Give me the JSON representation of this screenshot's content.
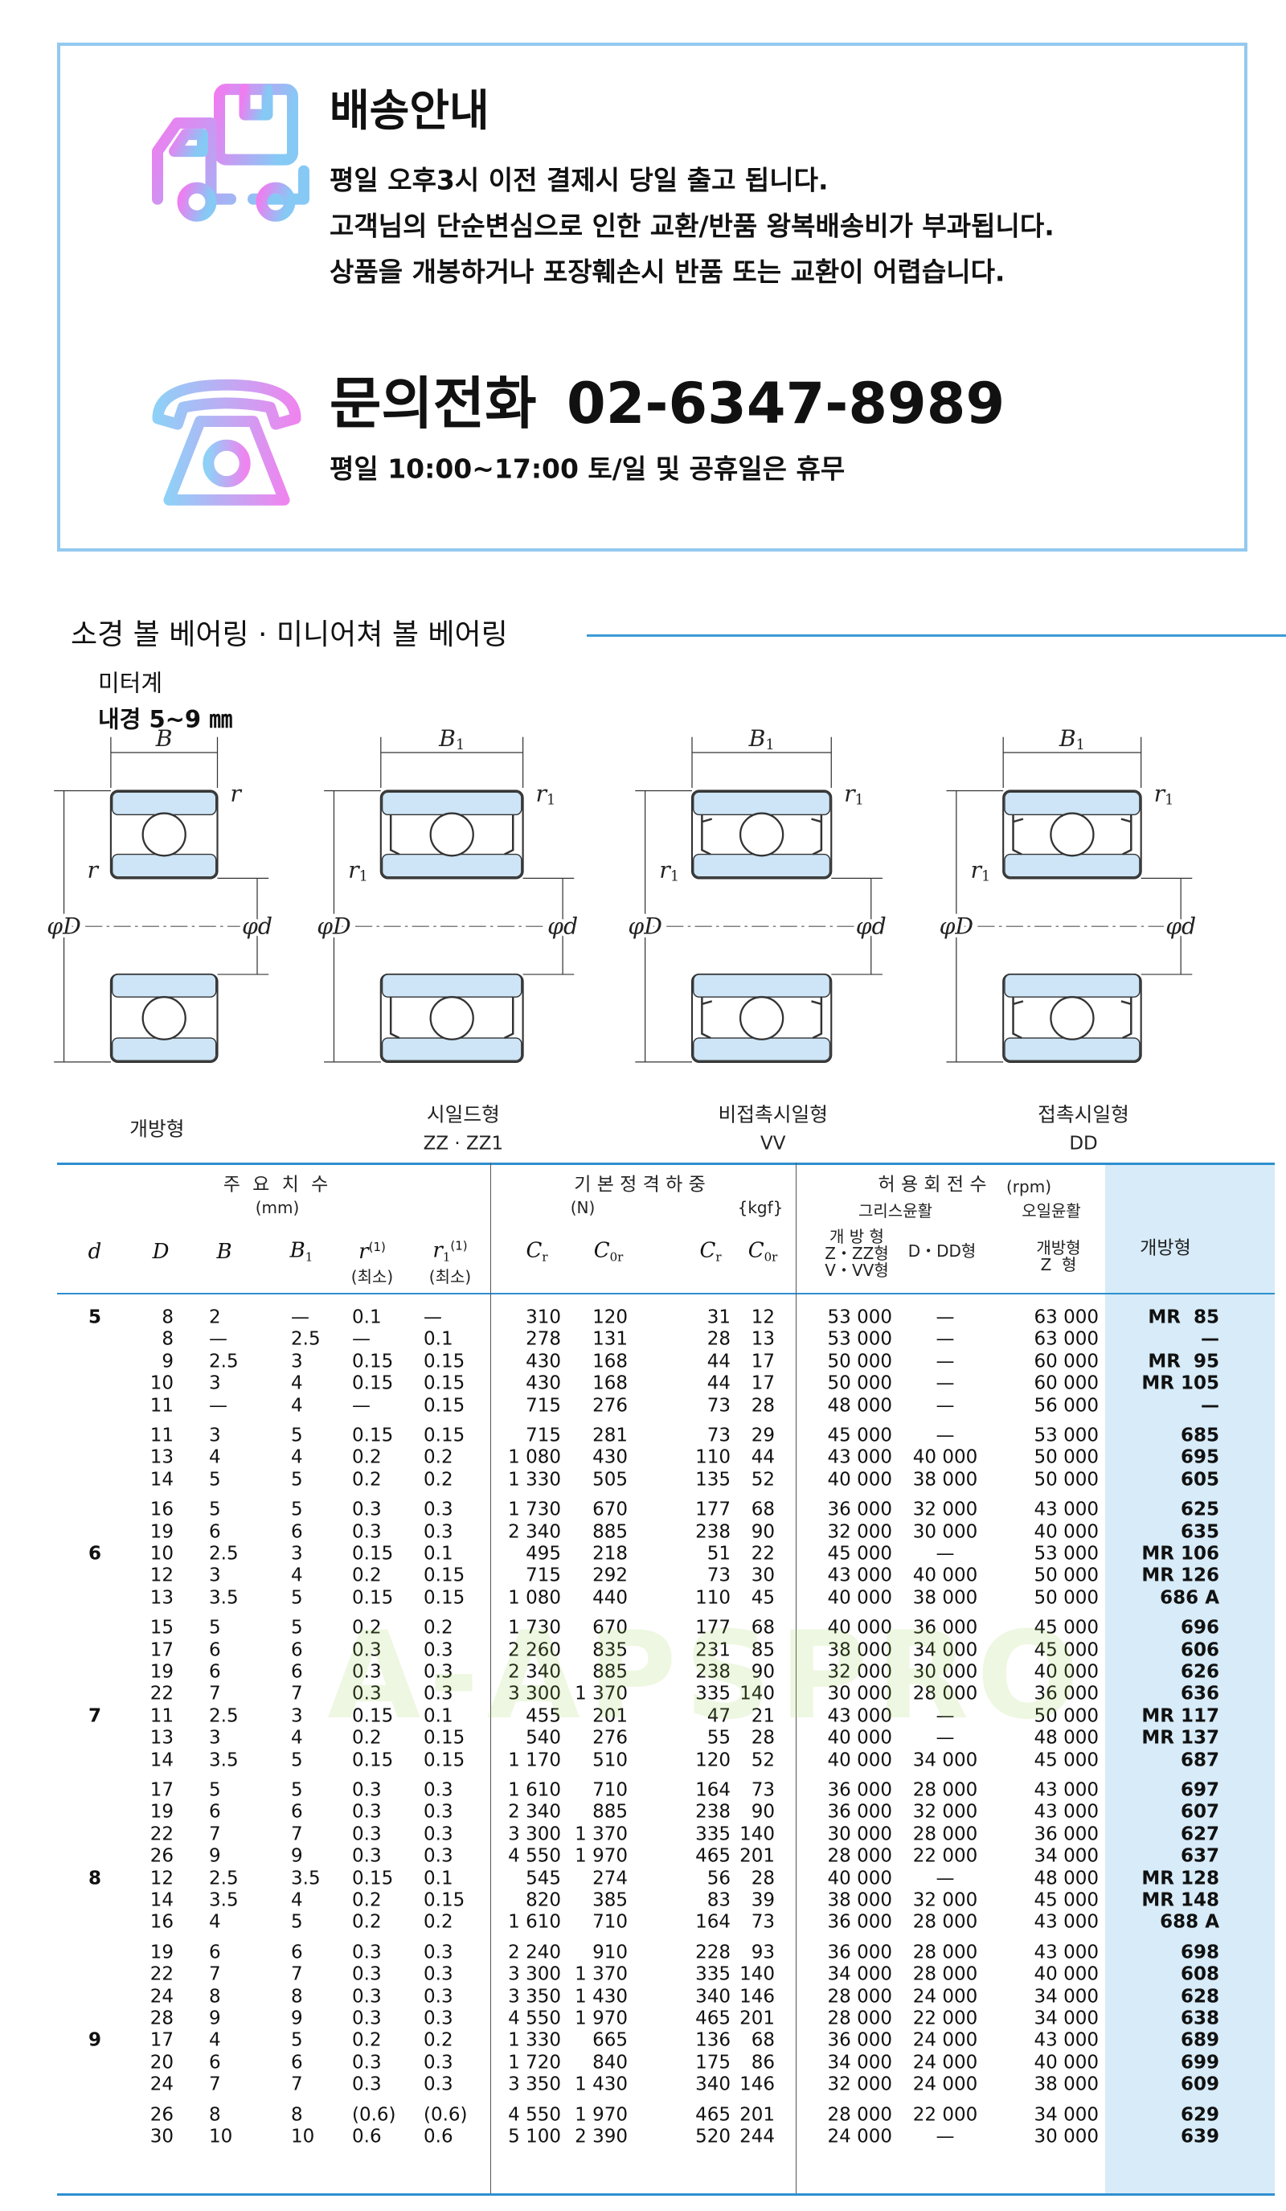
{
  "notice": {
    "title": "배송안내",
    "lines": [
      "평일 오후3시 이전 결제시 당일 출고 됩니다.",
      "고객님의 단순변심으로 인한 교환/반품 왕복배송비가 부과됩니다.",
      "상품을 개봉하거나 포장훼손시 반품 또는 교환이 어렵습니다."
    ],
    "phone_title": "문의전화",
    "phone": "02-6347-8989",
    "hours": "평일 10:00~17:00 토/일 및 공휴일은 휴무"
  },
  "section": {
    "title": "소경 볼 베어링 · 미니어쳐 볼 베어링",
    "system": "미터계",
    "bore_range": "내경 5~9 ㎜"
  },
  "diagrams": {
    "outer_label": "φD",
    "inner_label": "φd",
    "items": [
      {
        "width": "B",
        "corner": "r",
        "side": "r",
        "caption": "개방형"
      },
      {
        "width": "B",
        "width_sub": "1",
        "corner": "r",
        "corner_sub": "1",
        "side": "r",
        "side_sub": "1",
        "caption": "시일드형",
        "code": "ZZ · ZZ1"
      },
      {
        "width": "B",
        "width_sub": "1",
        "corner": "r",
        "corner_sub": "1",
        "side": "r",
        "side_sub": "1",
        "caption": "비접촉시일형",
        "code": "VV"
      },
      {
        "width": "B",
        "width_sub": "1",
        "corner": "r",
        "corner_sub": "1",
        "side": "r",
        "side_sub": "1",
        "caption": "접촉시일형",
        "code": "DD"
      }
    ]
  },
  "table": {
    "header": {
      "dims": "주 요 치 수",
      "dims_unit": "(mm)",
      "load": "기 본 정 격 하 중",
      "load_unit_n": "(N)",
      "load_unit_kgf": "{kgf}",
      "speed": "허 용 회 전 수",
      "speed_unit": "(rpm)",
      "grease": "그리스윤활",
      "oil": "오일윤활",
      "open": "개방형",
      "columns": [
        {
          "main": "d"
        },
        {
          "main": "D"
        },
        {
          "main": "B"
        },
        {
          "main": "B",
          "sub": "1"
        },
        {
          "main": "r",
          "sup": "(1)",
          "note": "(최소)"
        },
        {
          "main": "r",
          "sub": "1",
          "sup": "(1)",
          "note": "(최소)"
        },
        {
          "main": "C",
          "sub": "r"
        },
        {
          "main": "C",
          "sub": "0r"
        },
        {
          "main": "C",
          "sub": "r"
        },
        {
          "main": "C",
          "sub": "0r"
        },
        {
          "lines": [
            "개 방 형",
            "Z・ZZ형",
            "V・VV형"
          ]
        },
        {
          "lines": [
            "D・DD형"
          ]
        },
        {
          "lines": [
            "개방형",
            "Z  형"
          ]
        }
      ]
    },
    "groups": [
      {
        "d": "5",
        "blocks": [
          [
            [
              "8",
              "2",
              "—",
              "0.1",
              "—",
              "310",
              "120",
              "31",
              "12",
              "53 000",
              "—",
              "63 000",
              "MR  85"
            ],
            [
              "8",
              "—",
              "2.5",
              "—",
              "0.1",
              "278",
              "131",
              "28",
              "13",
              "53 000",
              "—",
              "63 000",
              "—"
            ],
            [
              "9",
              "2.5",
              "3",
              "0.15",
              "0.15",
              "430",
              "168",
              "44",
              "17",
              "50 000",
              "—",
              "60 000",
              "MR  95"
            ],
            [
              "10",
              "3",
              "4",
              "0.15",
              "0.15",
              "430",
              "168",
              "44",
              "17",
              "50 000",
              "—",
              "60 000",
              "MR 105"
            ],
            [
              "11",
              "—",
              "4",
              "—",
              "0.15",
              "715",
              "276",
              "73",
              "28",
              "48 000",
              "—",
              "56 000",
              "—"
            ]
          ],
          [
            [
              "11",
              "3",
              "5",
              "0.15",
              "0.15",
              "715",
              "281",
              "73",
              "29",
              "45 000",
              "—",
              "53 000",
              "685"
            ],
            [
              "13",
              "4",
              "4",
              "0.2",
              "0.2",
              "1 080",
              "430",
              "110",
              "44",
              "43 000",
              "40 000",
              "50 000",
              "695"
            ],
            [
              "14",
              "5",
              "5",
              "0.2",
              "0.2",
              "1 330",
              "505",
              "135",
              "52",
              "40 000",
              "38 000",
              "50 000",
              "605"
            ]
          ],
          [
            [
              "16",
              "5",
              "5",
              "0.3",
              "0.3",
              "1 730",
              "670",
              "177",
              "68",
              "36 000",
              "32 000",
              "43 000",
              "625"
            ],
            [
              "19",
              "6",
              "6",
              "0.3",
              "0.3",
              "2 340",
              "885",
              "238",
              "90",
              "32 000",
              "30 000",
              "40 000",
              "635"
            ]
          ]
        ]
      },
      {
        "d": "6",
        "blocks": [
          [
            [
              "10",
              "2.5",
              "3",
              "0.15",
              "0.1",
              "495",
              "218",
              "51",
              "22",
              "45 000",
              "—",
              "53 000",
              "MR 106"
            ],
            [
              "12",
              "3",
              "4",
              "0.2",
              "0.15",
              "715",
              "292",
              "73",
              "30",
              "43 000",
              "40 000",
              "50 000",
              "MR 126"
            ],
            [
              "13",
              "3.5",
              "5",
              "0.15",
              "0.15",
              "1 080",
              "440",
              "110",
              "45",
              "40 000",
              "38 000",
              "50 000",
              "686 A"
            ]
          ],
          [
            [
              "15",
              "5",
              "5",
              "0.2",
              "0.2",
              "1 730",
              "670",
              "177",
              "68",
              "40 000",
              "36 000",
              "45 000",
              "696"
            ],
            [
              "17",
              "6",
              "6",
              "0.3",
              "0.3",
              "2 260",
              "835",
              "231",
              "85",
              "38 000",
              "34 000",
              "45 000",
              "606"
            ],
            [
              "19",
              "6",
              "6",
              "0.3",
              "0.3",
              "2 340",
              "885",
              "238",
              "90",
              "32 000",
              "30 000",
              "40 000",
              "626"
            ],
            [
              "22",
              "7",
              "7",
              "0.3",
              "0.3",
              "3 300",
              "1 370",
              "335",
              "140",
              "30 000",
              "28 000",
              "36 000",
              "636"
            ]
          ]
        ]
      },
      {
        "d": "7",
        "blocks": [
          [
            [
              "11",
              "2.5",
              "3",
              "0.15",
              "0.1",
              "455",
              "201",
              "47",
              "21",
              "43 000",
              "—",
              "50 000",
              "MR 117"
            ],
            [
              "13",
              "3",
              "4",
              "0.2",
              "0.15",
              "540",
              "276",
              "55",
              "28",
              "40 000",
              "—",
              "48 000",
              "MR 137"
            ],
            [
              "14",
              "3.5",
              "5",
              "0.15",
              "0.15",
              "1 170",
              "510",
              "120",
              "52",
              "40 000",
              "34 000",
              "45 000",
              "687"
            ]
          ],
          [
            [
              "17",
              "5",
              "5",
              "0.3",
              "0.3",
              "1 610",
              "710",
              "164",
              "73",
              "36 000",
              "28 000",
              "43 000",
              "697"
            ],
            [
              "19",
              "6",
              "6",
              "0.3",
              "0.3",
              "2 340",
              "885",
              "238",
              "90",
              "36 000",
              "32 000",
              "43 000",
              "607"
            ],
            [
              "22",
              "7",
              "7",
              "0.3",
              "0.3",
              "3 300",
              "1 370",
              "335",
              "140",
              "30 000",
              "28 000",
              "36 000",
              "627"
            ],
            [
              "26",
              "9",
              "9",
              "0.3",
              "0.3",
              "4 550",
              "1 970",
              "465",
              "201",
              "28 000",
              "22 000",
              "34 000",
              "637"
            ]
          ]
        ]
      },
      {
        "d": "8",
        "blocks": [
          [
            [
              "12",
              "2.5",
              "3.5",
              "0.15",
              "0.1",
              "545",
              "274",
              "56",
              "28",
              "40 000",
              "—",
              "48 000",
              "MR 128"
            ],
            [
              "14",
              "3.5",
              "4",
              "0.2",
              "0.15",
              "820",
              "385",
              "83",
              "39",
              "38 000",
              "32 000",
              "45 000",
              "MR 148"
            ],
            [
              "16",
              "4",
              "5",
              "0.2",
              "0.2",
              "1 610",
              "710",
              "164",
              "73",
              "36 000",
              "28 000",
              "43 000",
              "688 A"
            ]
          ],
          [
            [
              "19",
              "6",
              "6",
              "0.3",
              "0.3",
              "2 240",
              "910",
              "228",
              "93",
              "36 000",
              "28 000",
              "43 000",
              "698"
            ],
            [
              "22",
              "7",
              "7",
              "0.3",
              "0.3",
              "3 300",
              "1 370",
              "335",
              "140",
              "34 000",
              "28 000",
              "40 000",
              "608"
            ],
            [
              "24",
              "8",
              "8",
              "0.3",
              "0.3",
              "3 350",
              "1 430",
              "340",
              "146",
              "28 000",
              "24 000",
              "34 000",
              "628"
            ],
            [
              "28",
              "9",
              "9",
              "0.3",
              "0.3",
              "4 550",
              "1 970",
              "465",
              "201",
              "28 000",
              "22 000",
              "34 000",
              "638"
            ]
          ]
        ]
      },
      {
        "d": "9",
        "blocks": [
          [
            [
              "17",
              "4",
              "5",
              "0.2",
              "0.2",
              "1 330",
              "665",
              "136",
              "68",
              "36 000",
              "24 000",
              "43 000",
              "689"
            ],
            [
              "20",
              "6",
              "6",
              "0.3",
              "0.3",
              "1 720",
              "840",
              "175",
              "86",
              "34 000",
              "24 000",
              "40 000",
              "699"
            ],
            [
              "24",
              "7",
              "7",
              "0.3",
              "0.3",
              "3 350",
              "1 430",
              "340",
              "146",
              "32 000",
              "24 000",
              "38 000",
              "609"
            ]
          ],
          [
            [
              "26",
              "8",
              "8",
              "(0.6)",
              "(0.6)",
              "4 550",
              "1 970",
              "465",
              "201",
              "28 000",
              "22 000",
              "34 000",
              "629"
            ],
            [
              "30",
              "10",
              "10",
              "0.6",
              "0.6",
              "5 100",
              "2 390",
              "520",
              "244",
              "24 000",
              "—",
              "30 000",
              "639"
            ]
          ]
        ]
      }
    ]
  },
  "watermark": "A-APSPRO"
}
